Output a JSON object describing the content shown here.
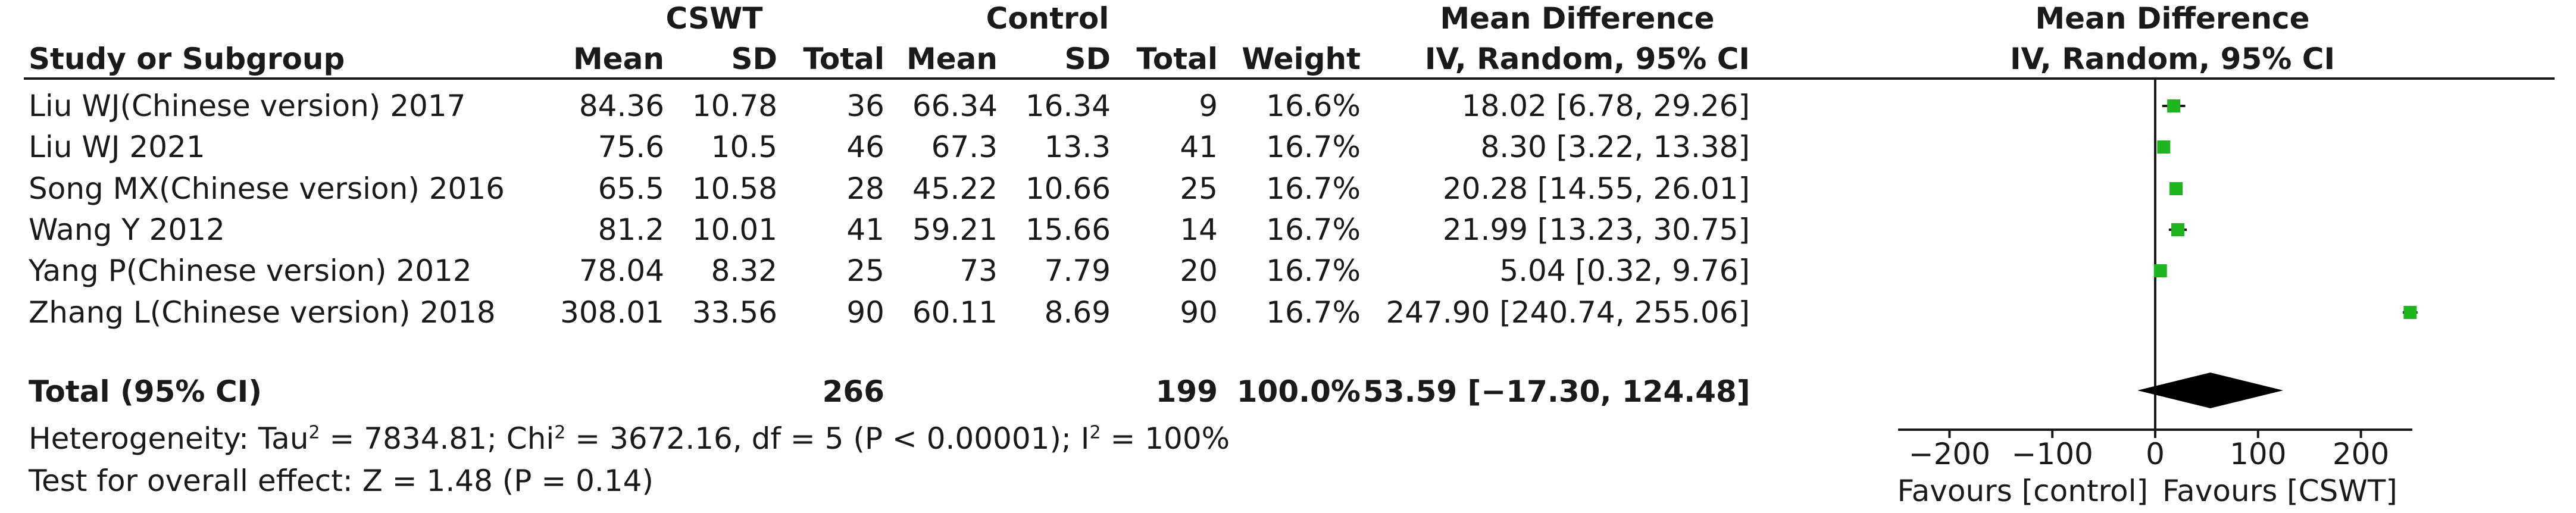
{
  "headers": {
    "group1": "CSWT",
    "group2": "Control",
    "md_title": "Mean Difference",
    "md_method": "IV, Random, 95% CI",
    "plot_title": "Mean Difference",
    "plot_method": "IV, Random, 95% CI",
    "study": "Study or Subgroup",
    "mean1": "Mean",
    "sd1": "SD",
    "total1": "Total",
    "mean2": "Mean",
    "sd2": "SD",
    "total2": "Total",
    "weight": "Weight"
  },
  "studies": [
    {
      "name": "Liu WJ(Chinese version) 2017",
      "mean1": "84.36",
      "sd1": "10.78",
      "total1": "36",
      "mean2": "66.34",
      "sd2": "16.34",
      "total2": "9",
      "weight": "16.6%",
      "ci": "18.02 [6.78, 29.26]"
    },
    {
      "name": "Liu WJ 2021",
      "mean1": "75.6",
      "sd1": "10.5",
      "total1": "46",
      "mean2": "67.3",
      "sd2": "13.3",
      "total2": "41",
      "weight": "16.7%",
      "ci": "8.30 [3.22, 13.38]"
    },
    {
      "name": "Song MX(Chinese version) 2016",
      "mean1": "65.5",
      "sd1": "10.58",
      "total1": "28",
      "mean2": "45.22",
      "sd2": "10.66",
      "total2": "25",
      "weight": "16.7%",
      "ci": "20.28 [14.55, 26.01]"
    },
    {
      "name": "Wang Y 2012",
      "mean1": "81.2",
      "sd1": "10.01",
      "total1": "41",
      "mean2": "59.21",
      "sd2": "15.66",
      "total2": "14",
      "weight": "16.7%",
      "ci": "21.99 [13.23, 30.75]"
    },
    {
      "name": "Yang P(Chinese version) 2012",
      "mean1": "78.04",
      "sd1": "8.32",
      "total1": "25",
      "mean2": "73",
      "sd2": "7.79",
      "total2": "20",
      "weight": "16.7%",
      "ci": "5.04 [0.32, 9.76]"
    },
    {
      "name": "Zhang L(Chinese version) 2018",
      "mean1": "308.01",
      "sd1": "33.56",
      "total1": "90",
      "mean2": "60.11",
      "sd2": "8.69",
      "total2": "90",
      "weight": "16.7%",
      "ci": "247.90 [240.74, 255.06]"
    }
  ],
  "total": {
    "label": "Total (95% CI)",
    "total1": "266",
    "total2": "199",
    "weight": "100.0%",
    "ci": "53.59 [−17.30, 124.48]"
  },
  "heterogeneity": {
    "pre": "Heterogeneity: Tau",
    "sup1": "2",
    "mid1": " = 7834.81; Chi",
    "sup2": "2",
    "mid2": " = 3672.16, df = 5 (P < 0.00001); I",
    "sup3": "2",
    "post": " = 100%"
  },
  "overall_effect": "Test for overall effect: Z = 1.48 (P = 0.14)",
  "chart_data": {
    "type": "forest",
    "x_ticks": [
      -200,
      -100,
      0,
      100,
      200
    ],
    "x_tick_labels": [
      "−200",
      "−100",
      "0",
      "100",
      "200"
    ],
    "xlim": [
      -250,
      250
    ],
    "favours_left": "Favours [control]",
    "favours_right": "Favours [CSWT]",
    "studies": [
      {
        "md": 18.02,
        "lo": 6.78,
        "hi": 29.26,
        "weight": 16.6
      },
      {
        "md": 8.3,
        "lo": 3.22,
        "hi": 13.38,
        "weight": 16.7
      },
      {
        "md": 20.28,
        "lo": 14.55,
        "hi": 26.01,
        "weight": 16.7
      },
      {
        "md": 21.99,
        "lo": 13.23,
        "hi": 30.75,
        "weight": 16.7
      },
      {
        "md": 5.04,
        "lo": 0.32,
        "hi": 9.76,
        "weight": 16.7
      },
      {
        "md": 247.9,
        "lo": 240.74,
        "hi": 255.06,
        "weight": 16.7
      }
    ],
    "pooled": {
      "md": 53.59,
      "lo": -17.3,
      "hi": 124.48
    },
    "marker_color": "#1fb51f",
    "diamond_color": "#000000"
  }
}
